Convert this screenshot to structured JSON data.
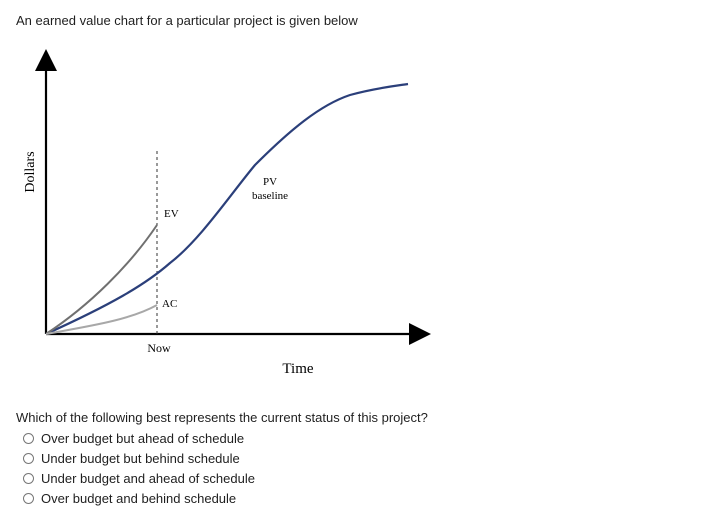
{
  "question_intro": "An earned value chart for a particular project is given below",
  "chart_data": {
    "type": "line",
    "xlabel": "Time",
    "ylabel": "Dollars",
    "marker_label": "Now",
    "series": [
      {
        "name": "PV baseline",
        "label_lines": [
          "PV",
          "baseline"
        ],
        "color": "#2b3f7a"
      },
      {
        "name": "EV",
        "color": "#707070"
      },
      {
        "name": "AC",
        "color": "#a8a8a8"
      }
    ],
    "grid": false
  },
  "question": "Which of the following best represents the current status of this project?",
  "options": [
    {
      "label": "Over budget but ahead of schedule",
      "selected": false
    },
    {
      "label": "Under budget but behind schedule",
      "selected": false
    },
    {
      "label": "Under budget and ahead of schedule",
      "selected": false
    },
    {
      "label": "Over budget and behind schedule",
      "selected": false
    }
  ]
}
